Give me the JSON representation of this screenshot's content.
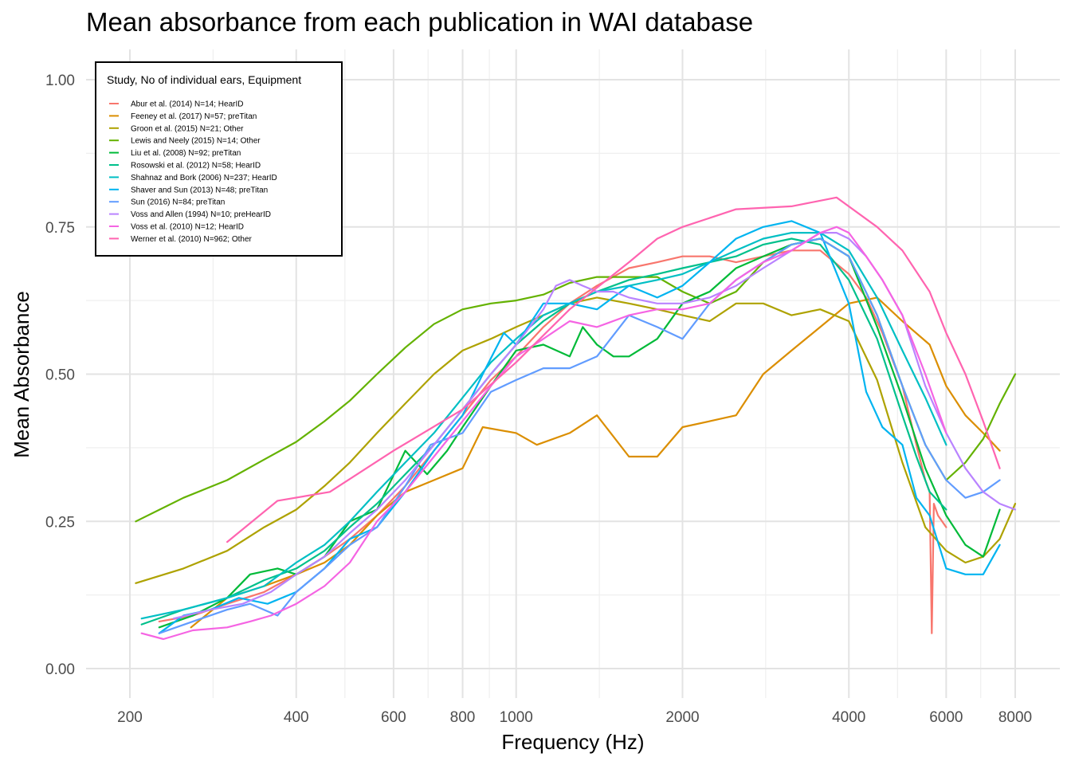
{
  "chart_data": {
    "type": "line",
    "title": "Mean absorbance from each publication in WAI database",
    "xlabel": "Frequency (Hz)",
    "ylabel": "Mean Absorbance",
    "x_scale": "log",
    "xlim": [
      200,
      8000
    ],
    "ylim": [
      0,
      1
    ],
    "x_ticks": [
      200,
      400,
      600,
      800,
      1000,
      2000,
      4000,
      6000,
      8000
    ],
    "x_tick_labels": [
      "200",
      "400",
      "600",
      "800",
      "1000",
      "2000",
      "4000",
      "6000",
      "8000"
    ],
    "y_ticks": [
      0,
      0.25,
      0.5,
      0.75,
      1.0
    ],
    "y_tick_labels": [
      "0.00",
      "0.25",
      "0.50",
      "0.75",
      "1.00"
    ],
    "grid": true,
    "legend": {
      "title": "Study, No of individual ears, Equipment",
      "placement": "top-left"
    },
    "series": [
      {
        "name": "Abur et al. (2014) N=14; HearID",
        "color": "#F8766D",
        "x": [
          226,
          260,
          300,
          350,
          400,
          450,
          500,
          560,
          630,
          710,
          800,
          900,
          1000,
          1120,
          1250,
          1400,
          1600,
          1800,
          2000,
          2240,
          2500,
          2800,
          3150,
          3550,
          4000,
          4300,
          4600,
          5000,
          5300,
          5500,
          5600,
          5650,
          5700,
          5800,
          6000
        ],
        "y": [
          0.08,
          0.09,
          0.11,
          0.13,
          0.16,
          0.19,
          0.22,
          0.26,
          0.31,
          0.37,
          0.43,
          0.49,
          0.53,
          0.58,
          0.62,
          0.65,
          0.68,
          0.69,
          0.7,
          0.7,
          0.69,
          0.7,
          0.71,
          0.71,
          0.67,
          0.63,
          0.57,
          0.48,
          0.38,
          0.32,
          0.3,
          0.06,
          0.28,
          0.26,
          0.24
        ]
      },
      {
        "name": "Feeney et al. (2017) N=57; preTitan",
        "color": "#DB8E00",
        "x": [
          258,
          300,
          350,
          400,
          450,
          500,
          560,
          630,
          710,
          800,
          870,
          1000,
          1090,
          1250,
          1400,
          1600,
          1800,
          2000,
          2240,
          2500,
          2800,
          3150,
          3550,
          4000,
          4500,
          5000,
          5600,
          6000,
          6500,
          7000,
          7500
        ],
        "y": [
          0.07,
          0.12,
          0.14,
          0.16,
          0.18,
          0.21,
          0.26,
          0.3,
          0.32,
          0.34,
          0.41,
          0.4,
          0.38,
          0.4,
          0.43,
          0.36,
          0.36,
          0.41,
          0.42,
          0.43,
          0.5,
          0.54,
          0.58,
          0.62,
          0.63,
          0.59,
          0.55,
          0.48,
          0.43,
          0.4,
          0.37
        ]
      },
      {
        "name": "Groon et al. (2015) N=21; Other",
        "color": "#AEA200",
        "x": [
          205,
          250,
          300,
          350,
          400,
          450,
          500,
          560,
          630,
          710,
          800,
          900,
          1000,
          1120,
          1250,
          1400,
          1600,
          1800,
          2000,
          2240,
          2500,
          2800,
          3150,
          3550,
          4000,
          4500,
          5000,
          5500,
          6000,
          6500,
          7000,
          7500,
          8000
        ],
        "y": [
          0.145,
          0.17,
          0.2,
          0.24,
          0.27,
          0.31,
          0.35,
          0.4,
          0.45,
          0.5,
          0.54,
          0.56,
          0.58,
          0.6,
          0.62,
          0.63,
          0.62,
          0.61,
          0.6,
          0.59,
          0.62,
          0.62,
          0.6,
          0.61,
          0.59,
          0.49,
          0.35,
          0.24,
          0.2,
          0.18,
          0.19,
          0.22,
          0.28
        ]
      },
      {
        "name": "Lewis and Neely (2015) N=14; Other",
        "color": "#64B200",
        "x": [
          205,
          250,
          300,
          350,
          400,
          450,
          500,
          560,
          630,
          710,
          800,
          900,
          1000,
          1120,
          1250,
          1400,
          1600,
          1800,
          2000,
          2240,
          2500,
          2800,
          3150,
          3550,
          4000,
          4500,
          5000,
          5500,
          6000,
          6500,
          7000,
          7500,
          8000
        ],
        "y": [
          0.25,
          0.29,
          0.32,
          0.355,
          0.385,
          0.42,
          0.455,
          0.5,
          0.545,
          0.585,
          0.61,
          0.62,
          0.625,
          0.635,
          0.655,
          0.665,
          0.665,
          0.665,
          0.64,
          0.62,
          0.64,
          0.69,
          0.72,
          0.73,
          0.7,
          0.6,
          0.48,
          0.38,
          0.32,
          0.35,
          0.39,
          0.45,
          0.5
        ]
      },
      {
        "name": "Liu et al. (2008) N=92; preTitan",
        "color": "#00BA38",
        "x": [
          226,
          260,
          300,
          330,
          370,
          400,
          450,
          500,
          560,
          630,
          690,
          750,
          800,
          900,
          1000,
          1120,
          1250,
          1320,
          1400,
          1500,
          1600,
          1800,
          2000,
          2240,
          2500,
          2800,
          3150,
          3550,
          4000,
          4500,
          5000,
          5500,
          6000,
          6500,
          7000,
          7500
        ],
        "y": [
          0.07,
          0.09,
          0.12,
          0.16,
          0.17,
          0.16,
          0.19,
          0.25,
          0.27,
          0.37,
          0.33,
          0.37,
          0.41,
          0.48,
          0.54,
          0.55,
          0.53,
          0.58,
          0.55,
          0.53,
          0.53,
          0.56,
          0.62,
          0.64,
          0.68,
          0.7,
          0.72,
          0.73,
          0.7,
          0.58,
          0.46,
          0.34,
          0.26,
          0.21,
          0.19,
          0.27
        ]
      },
      {
        "name": "Rosowski et al. (2012) N=58; HearID",
        "color": "#00C08B",
        "x": [
          210,
          250,
          300,
          350,
          400,
          450,
          500,
          560,
          630,
          710,
          800,
          900,
          1000,
          1120,
          1250,
          1400,
          1600,
          1800,
          2000,
          2240,
          2500,
          2800,
          3150,
          3550,
          4000,
          4500,
          5000,
          5300,
          5600,
          6000
        ],
        "y": [
          0.075,
          0.1,
          0.12,
          0.15,
          0.17,
          0.2,
          0.24,
          0.28,
          0.33,
          0.38,
          0.44,
          0.5,
          0.55,
          0.59,
          0.62,
          0.64,
          0.66,
          0.67,
          0.68,
          0.69,
          0.7,
          0.72,
          0.73,
          0.72,
          0.66,
          0.56,
          0.43,
          0.36,
          0.3,
          0.27
        ]
      },
      {
        "name": "Shahnaz and Bork (2006) N=237; HearID",
        "color": "#00BFC4",
        "x": [
          210,
          250,
          300,
          350,
          400,
          450,
          500,
          560,
          630,
          710,
          800,
          900,
          1000,
          1120,
          1250,
          1400,
          1600,
          1800,
          2000,
          2240,
          2500,
          2800,
          3150,
          3550,
          4000,
          4500,
          5000,
          5500,
          6000
        ],
        "y": [
          0.085,
          0.1,
          0.12,
          0.14,
          0.18,
          0.21,
          0.25,
          0.3,
          0.35,
          0.4,
          0.46,
          0.52,
          0.56,
          0.6,
          0.62,
          0.64,
          0.65,
          0.66,
          0.67,
          0.69,
          0.71,
          0.73,
          0.74,
          0.74,
          0.71,
          0.63,
          0.54,
          0.46,
          0.38
        ]
      },
      {
        "name": "Shaver and Sun (2013) N=48; preTitan",
        "color": "#00B4F0",
        "x": [
          226,
          250,
          280,
          315,
          355,
          400,
          450,
          500,
          560,
          630,
          710,
          800,
          870,
          950,
          1000,
          1120,
          1250,
          1400,
          1600,
          1800,
          2000,
          2240,
          2500,
          2800,
          3150,
          3550,
          4000,
          4300,
          4600,
          5000,
          5300,
          5600,
          6000,
          6500,
          7000,
          7500
        ],
        "y": [
          0.06,
          0.09,
          0.1,
          0.12,
          0.11,
          0.13,
          0.17,
          0.22,
          0.24,
          0.3,
          0.37,
          0.43,
          0.5,
          0.57,
          0.55,
          0.62,
          0.62,
          0.61,
          0.65,
          0.63,
          0.65,
          0.69,
          0.73,
          0.75,
          0.76,
          0.74,
          0.62,
          0.47,
          0.41,
          0.38,
          0.29,
          0.26,
          0.17,
          0.16,
          0.16,
          0.21
        ]
      },
      {
        "name": "Sun (2016) N=84; preTitan",
        "color": "#619CFF",
        "x": [
          226,
          260,
          300,
          330,
          370,
          400,
          450,
          500,
          560,
          630,
          700,
          800,
          900,
          1000,
          1120,
          1250,
          1400,
          1600,
          1800,
          2000,
          2240,
          2500,
          2800,
          3150,
          3550,
          4000,
          4500,
          5000,
          5500,
          6000,
          6500,
          7000,
          7500
        ],
        "y": [
          0.06,
          0.08,
          0.1,
          0.11,
          0.09,
          0.13,
          0.17,
          0.21,
          0.24,
          0.31,
          0.38,
          0.4,
          0.47,
          0.49,
          0.51,
          0.51,
          0.53,
          0.6,
          0.58,
          0.56,
          0.62,
          0.66,
          0.69,
          0.72,
          0.73,
          0.7,
          0.6,
          0.48,
          0.38,
          0.32,
          0.29,
          0.3,
          0.32
        ]
      },
      {
        "name": "Voss and Allen (1994) N=10; preHearID",
        "color": "#B983FF",
        "x": [
          240,
          280,
          320,
          360,
          400,
          450,
          500,
          560,
          630,
          710,
          800,
          900,
          1000,
          1120,
          1180,
          1250,
          1320,
          1400,
          1500,
          1600,
          1800,
          2000,
          2240,
          2500,
          2800,
          3150,
          3550,
          3800,
          4000,
          4300,
          4600,
          5000,
          5500,
          6000,
          6500,
          7000,
          7500,
          8000
        ],
        "y": [
          0.085,
          0.1,
          0.11,
          0.13,
          0.16,
          0.19,
          0.23,
          0.27,
          0.32,
          0.38,
          0.44,
          0.5,
          0.55,
          0.61,
          0.65,
          0.66,
          0.65,
          0.64,
          0.64,
          0.63,
          0.62,
          0.62,
          0.63,
          0.65,
          0.68,
          0.71,
          0.74,
          0.74,
          0.73,
          0.7,
          0.66,
          0.6,
          0.48,
          0.4,
          0.34,
          0.3,
          0.28,
          0.27
        ]
      },
      {
        "name": "Voss et al. (2010) N=12; HearID",
        "color": "#F564E3",
        "x": [
          210,
          230,
          260,
          300,
          330,
          360,
          400,
          450,
          500,
          560,
          630,
          710,
          800,
          900,
          1000,
          1120,
          1250,
          1400,
          1600,
          1800,
          2000,
          2240,
          2500,
          2800,
          3150,
          3550,
          3800,
          4000,
          4300,
          4600,
          5000,
          5500,
          6000
        ],
        "y": [
          0.06,
          0.05,
          0.065,
          0.07,
          0.08,
          0.09,
          0.11,
          0.14,
          0.18,
          0.25,
          0.3,
          0.36,
          0.42,
          0.48,
          0.53,
          0.56,
          0.59,
          0.58,
          0.6,
          0.61,
          0.61,
          0.62,
          0.66,
          0.69,
          0.71,
          0.74,
          0.75,
          0.74,
          0.7,
          0.66,
          0.6,
          0.5,
          0.4
        ]
      },
      {
        "name": "Werner et al. (2010) N=962; Other",
        "color": "#FF64B0",
        "x": [
          300,
          370,
          460,
          600,
          800,
          1000,
          1250,
          1600,
          1800,
          2000,
          2500,
          3150,
          3800,
          4500,
          5000,
          5600,
          6000,
          6500,
          7000,
          7500
        ],
        "y": [
          0.215,
          0.285,
          0.3,
          0.37,
          0.44,
          0.52,
          0.61,
          0.69,
          0.73,
          0.75,
          0.78,
          0.785,
          0.8,
          0.75,
          0.71,
          0.64,
          0.57,
          0.5,
          0.42,
          0.34
        ]
      }
    ]
  }
}
